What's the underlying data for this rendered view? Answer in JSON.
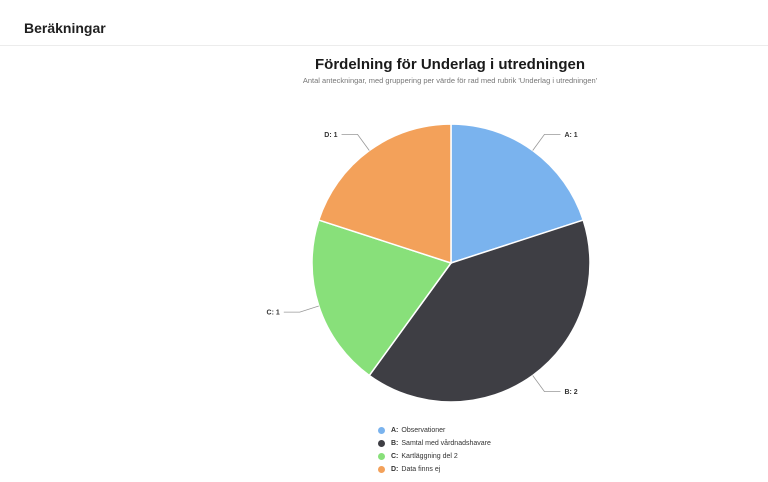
{
  "section": {
    "title": "Beräkningar"
  },
  "chart_data": {
    "type": "pie",
    "title": "Fördelning för Underlag i utredningen",
    "subtitle": "Antal anteckningar, med gruppering per värde för rad med rubrik 'Underlag i utredningen'",
    "slices": [
      {
        "key": "A",
        "name": "Observationer",
        "value": 1,
        "color": "#7ab3ee"
      },
      {
        "key": "B",
        "name": "Samtal med vårdnadshavare",
        "value": 2,
        "color": "#3e3e44"
      },
      {
        "key": "C",
        "name": "Kartläggning del 2",
        "value": 1,
        "color": "#88e07a"
      },
      {
        "key": "D",
        "name": "Data finns ej",
        "value": 1,
        "color": "#f3a15a"
      }
    ],
    "data_labels": [
      "A: 1",
      "B: 2",
      "C: 1",
      "D: 1"
    ],
    "legend_position": "bottom"
  }
}
